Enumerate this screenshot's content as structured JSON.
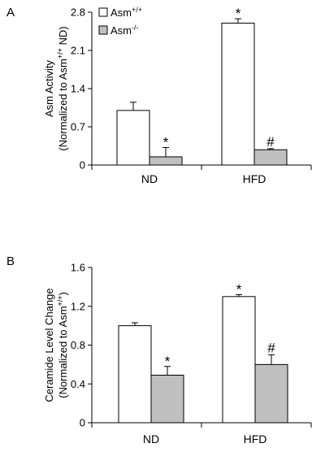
{
  "chart_data": [
    {
      "panel": "A",
      "type": "bar",
      "categories": [
        "ND",
        "HFD"
      ],
      "ylabel_line1": "Asm Activity",
      "ylabel_line2_pre": "(Normalized to Asm",
      "ylabel_line2_sup": "+/+",
      "ylabel_line2_post": " ND)",
      "ylim": [
        0,
        2.8
      ],
      "yticks": [
        "0",
        "0.7",
        "1.4",
        "2.1",
        "2.8"
      ],
      "ytick_values": [
        0,
        0.7,
        1.4,
        2.1,
        2.8
      ],
      "legend": [
        {
          "base": "Asm",
          "sup": "+/+",
          "color": "#ffffff"
        },
        {
          "base": "Asm",
          "sup": "-/-",
          "color": "#c0c0c0"
        }
      ],
      "series": [
        {
          "values": [
            1.0,
            2.6
          ],
          "errors": [
            0.15,
            0.08
          ],
          "markers": [
            "",
            "*"
          ],
          "color": "#ffffff"
        },
        {
          "values": [
            0.15,
            0.28
          ],
          "errors": [
            0.17,
            0.02
          ],
          "markers": [
            "*",
            "#"
          ],
          "color": "#c0c0c0"
        }
      ]
    },
    {
      "panel": "B",
      "type": "bar",
      "categories": [
        "ND",
        "HFD"
      ],
      "ylabel_line1": "Ceramide Level Change",
      "ylabel_line2_pre": "(Normalized to Asm",
      "ylabel_line2_sup": "+/+",
      "ylabel_line2_post": ")",
      "ylim": [
        0,
        1.6
      ],
      "yticks": [
        "0",
        "0.4",
        "0.8",
        "1.2",
        "1.6"
      ],
      "ytick_values": [
        0,
        0.4,
        0.8,
        1.2,
        1.6
      ],
      "series": [
        {
          "values": [
            1.0,
            1.3
          ],
          "errors": [
            0.03,
            0.02
          ],
          "markers": [
            "",
            "*"
          ],
          "color": "#ffffff"
        },
        {
          "values": [
            0.49,
            0.6
          ],
          "errors": [
            0.09,
            0.1
          ],
          "markers": [
            "*",
            "#"
          ],
          "color": "#c0c0c0"
        }
      ]
    }
  ]
}
